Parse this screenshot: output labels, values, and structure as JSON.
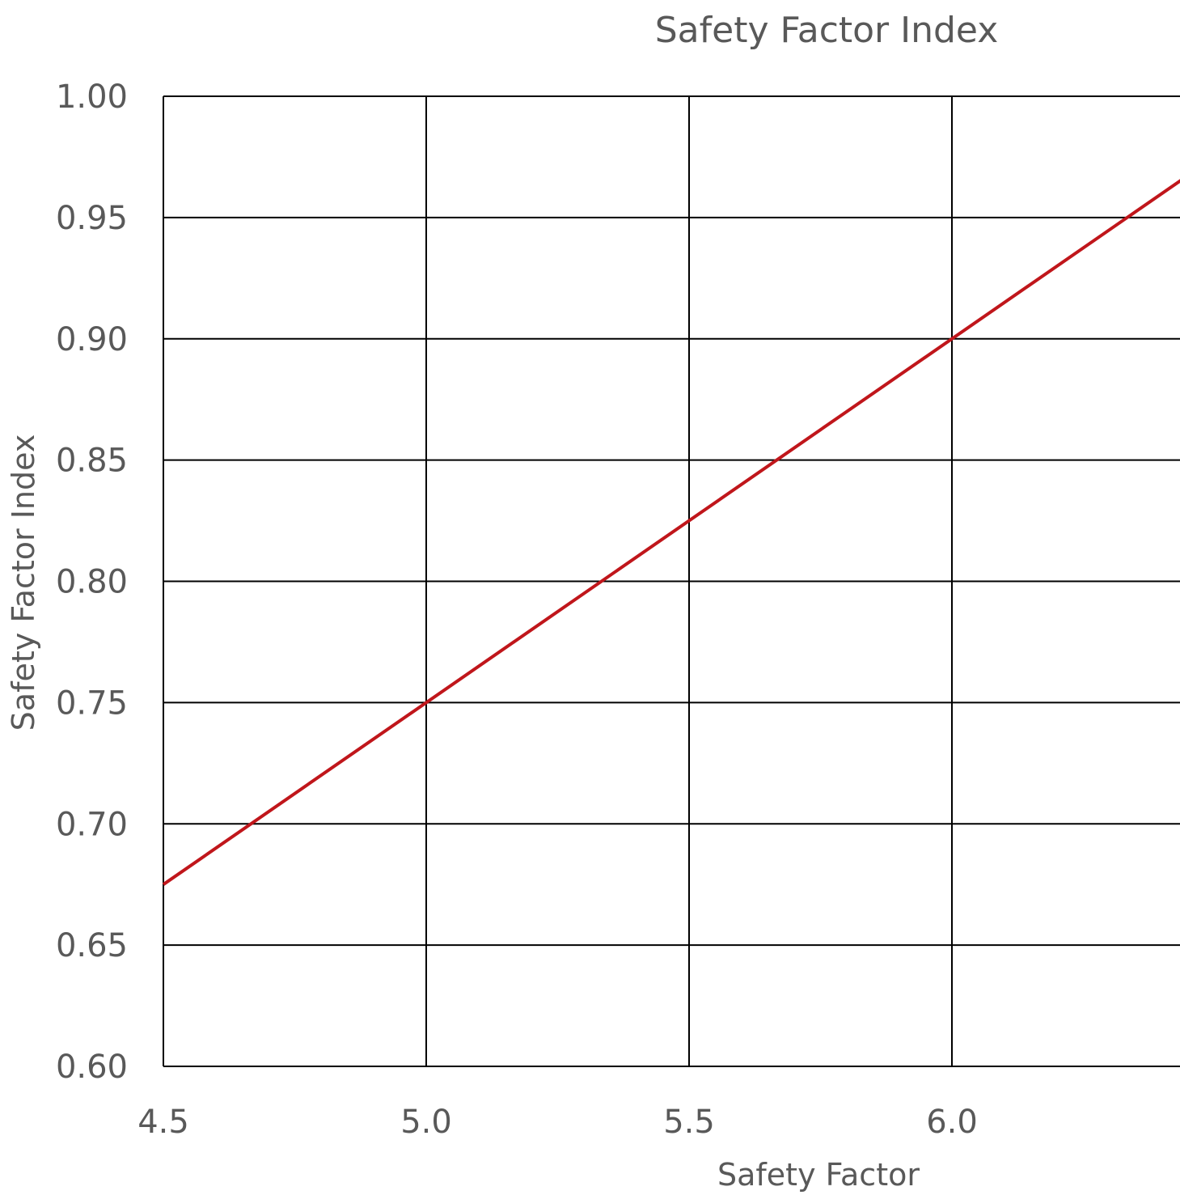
{
  "chart_data": {
    "type": "line",
    "title": "Safety Factor Index",
    "xlabel": "Safety Factor",
    "ylabel": "Safety Factor Index",
    "xlim": [
      4.5,
      6.5
    ],
    "ylim": [
      0.6,
      1.0
    ],
    "x_ticks": [
      "4.5",
      "5.0",
      "5.5",
      "6.0"
    ],
    "y_ticks": [
      "0.60",
      "0.65",
      "0.70",
      "0.75",
      "0.80",
      "0.85",
      "0.90",
      "0.95",
      "1.00"
    ],
    "grid": true,
    "legend": "none",
    "series": [
      {
        "color": "#c0161b",
        "x": [
          4.5,
          6.5
        ],
        "y": [
          0.675,
          0.975
        ]
      }
    ]
  }
}
